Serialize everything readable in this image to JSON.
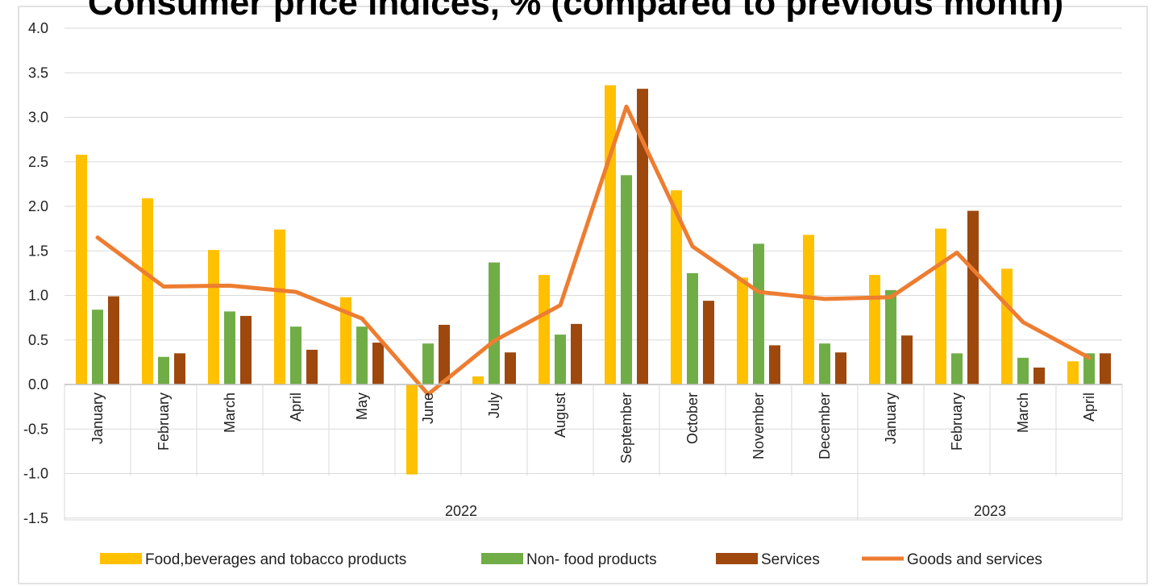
{
  "chart_data": {
    "type": "bar",
    "title": "Consumer price indices, % (compared to previous month)",
    "xlabel": "",
    "ylabel": "",
    "ylim": [
      -1.5,
      4.0
    ],
    "yticks": [
      "4.0",
      "3.5",
      "3.0",
      "2.5",
      "2.0",
      "1.5",
      "1.0",
      "0.5",
      "0.0",
      "-0.5",
      "-1.0",
      "-1.5"
    ],
    "categories": [
      "January",
      "February",
      "March",
      "April",
      "May",
      "June",
      "July",
      "August",
      "September",
      "October",
      "November",
      "December",
      "January",
      "February",
      "March",
      "April"
    ],
    "groups": [
      {
        "label": "2022",
        "count": 12
      },
      {
        "label": "2023",
        "count": 4
      }
    ],
    "grid": true,
    "legend_position": "bottom",
    "series": [
      {
        "name": "Food,beverages and tobacco products",
        "type": "bar",
        "color": "#FFC000",
        "values": [
          2.58,
          2.09,
          1.51,
          1.74,
          0.98,
          -1.01,
          0.09,
          1.23,
          3.36,
          2.18,
          1.2,
          1.68,
          1.23,
          1.75,
          1.3,
          0.26
        ]
      },
      {
        "name": "Non- food products",
        "type": "bar",
        "color": "#70AD47",
        "values": [
          0.84,
          0.31,
          0.82,
          0.65,
          0.65,
          0.46,
          1.37,
          0.56,
          2.35,
          1.25,
          1.58,
          0.46,
          1.06,
          0.35,
          0.3,
          0.35
        ]
      },
      {
        "name": "Services",
        "type": "bar",
        "color": "#9E480E",
        "values": [
          0.99,
          0.35,
          0.77,
          0.39,
          0.47,
          0.67,
          0.36,
          0.68,
          3.32,
          0.94,
          0.44,
          0.36,
          0.55,
          1.95,
          0.19,
          0.35
        ]
      },
      {
        "name": "Goods and services",
        "type": "line",
        "color": "#ED7D31",
        "values": [
          1.65,
          1.1,
          1.11,
          1.04,
          0.74,
          -0.11,
          0.49,
          0.89,
          3.12,
          1.55,
          1.04,
          0.96,
          0.98,
          1.48,
          0.7,
          0.3
        ]
      }
    ]
  }
}
